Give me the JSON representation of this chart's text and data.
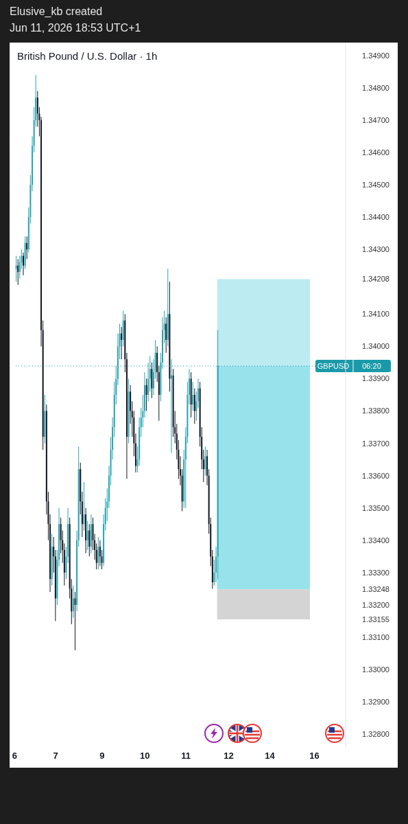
{
  "chart_data": {
    "type": "candlestick",
    "title": "British Pound / U.S. Dollar · 1h",
    "subtitle": "Jun 11, 2026 18:53 UTC+1",
    "annotations": [
      "Elusive_kb created",
      "06:20"
    ],
    "categories": [
      "6",
      null,
      null,
      null,
      null,
      null,
      null,
      null,
      null,
      null,
      null,
      null,
      null,
      null,
      null,
      null,
      null,
      null,
      null,
      null,
      null,
      null,
      null,
      "7",
      null,
      null,
      null,
      null,
      null,
      null,
      null,
      null,
      null,
      null,
      null,
      null,
      null,
      null,
      null,
      null,
      null,
      null,
      null,
      null,
      null,
      null,
      null,
      null,
      null,
      "9",
      null,
      null,
      null,
      null,
      null,
      null,
      null,
      null,
      null,
      null,
      null,
      null,
      null,
      null,
      null,
      null,
      null,
      null,
      null,
      null,
      null,
      null,
      null,
      "10",
      null,
      null,
      null,
      null,
      null,
      null,
      null,
      null,
      null,
      null,
      null,
      null,
      null,
      null,
      null,
      null,
      null,
      null,
      null,
      null,
      null,
      null,
      "11",
      null,
      null,
      null,
      null,
      null,
      null,
      null,
      null,
      null,
      null,
      null,
      null,
      null,
      null,
      null,
      null,
      null,
      null,
      null,
      null,
      null,
      null,
      null,
      "12",
      null,
      null,
      null,
      null,
      null,
      null,
      null,
      null,
      null,
      null,
      null,
      null,
      null,
      null,
      null,
      null,
      null,
      null,
      null,
      null,
      null,
      null,
      "14",
      null,
      null,
      null,
      null,
      null,
      null,
      null,
      null,
      null,
      null,
      null,
      null,
      null,
      null,
      null,
      null,
      null,
      null,
      null,
      null,
      null,
      null,
      null,
      null,
      "16",
      null,
      null,
      null,
      null,
      null,
      null,
      null,
      null,
      null,
      null,
      null,
      null,
      null,
      null,
      null,
      null,
      null
    ],
    "ohlc": [
      null,
      [
        1.3424,
        1.3428,
        1.342,
        1.3425
      ],
      [
        1.3425,
        1.3427,
        1.3419,
        1.3423
      ],
      [
        1.3423,
        1.3428,
        1.3421,
        1.3426
      ],
      [
        1.3426,
        1.343,
        1.3424,
        1.3428
      ],
      [
        1.3428,
        1.3429,
        1.3422,
        1.3425
      ],
      [
        1.3425,
        1.3434,
        1.3424,
        1.3432
      ],
      [
        1.3432,
        1.3434,
        1.3427,
        1.343
      ],
      [
        1.343,
        1.3443,
        1.3429,
        1.344
      ],
      [
        1.344,
        1.3453,
        1.3438,
        1.345
      ],
      [
        1.345,
        1.3465,
        1.3448,
        1.3462
      ],
      [
        1.3462,
        1.3474,
        1.346,
        1.347
      ],
      [
        1.347,
        1.3484,
        1.3468,
        1.3477
      ],
      [
        1.3477,
        1.3479,
        1.3468,
        1.3472
      ],
      [
        1.3472,
        1.3474,
        1.3465,
        1.347
      ],
      [
        1.347,
        1.3471,
        1.34,
        1.3405
      ],
      [
        1.3405,
        1.3408,
        1.3368,
        1.3372
      ],
      [
        1.3372,
        1.3385,
        1.337,
        1.338
      ],
      [
        1.338,
        1.3382,
        1.3348,
        1.3352
      ],
      [
        1.3352,
        1.3355,
        1.334,
        1.3345
      ],
      [
        1.3345,
        1.3348,
        1.3324,
        1.3328
      ],
      [
        1.3328,
        1.3342,
        1.3326,
        1.3338
      ],
      [
        1.3338,
        1.3341,
        1.333,
        1.3335
      ],
      [
        1.3335,
        1.3337,
        1.3315,
        1.3322
      ],
      [
        1.3322,
        1.3337,
        1.332,
        1.3334
      ],
      [
        1.3334,
        1.335,
        1.3332,
        1.3345
      ],
      [
        1.3345,
        1.3347,
        1.3336,
        1.334
      ],
      [
        1.334,
        1.3343,
        1.3333,
        1.3337
      ],
      [
        1.3337,
        1.3339,
        1.3326,
        1.333
      ],
      [
        1.333,
        1.3338,
        1.3328,
        1.3335
      ],
      [
        1.3335,
        1.335,
        1.3333,
        1.3345
      ],
      [
        1.3345,
        1.3347,
        1.3322,
        1.3325
      ],
      [
        1.3325,
        1.3328,
        1.3314,
        1.3318
      ],
      [
        1.3318,
        1.3326,
        1.3316,
        1.3322
      ],
      [
        1.3322,
        1.3324,
        1.3306,
        1.332
      ],
      [
        1.332,
        1.3343,
        1.3318,
        1.334
      ],
      [
        1.334,
        1.3369,
        1.3338,
        1.3362
      ],
      [
        1.3362,
        1.3364,
        1.3348,
        1.3352
      ],
      [
        1.3352,
        1.3355,
        1.3341,
        1.3345
      ],
      [
        1.3345,
        1.3358,
        1.3343,
        1.3348
      ],
      [
        1.3348,
        1.335,
        1.3336,
        1.334
      ],
      [
        1.334,
        1.3346,
        1.3337,
        1.3343
      ],
      [
        1.3343,
        1.3345,
        1.3335,
        1.3338
      ],
      [
        1.3338,
        1.3348,
        1.3336,
        1.3345
      ],
      [
        1.3345,
        1.3347,
        1.3337,
        1.334
      ],
      [
        1.334,
        1.3342,
        1.3334,
        1.3337
      ],
      [
        1.3337,
        1.3339,
        1.3331,
        1.3333
      ],
      [
        1.3333,
        1.3341,
        1.3331,
        1.3338
      ],
      [
        1.3338,
        1.334,
        1.3332,
        1.3335
      ],
      [
        1.3335,
        1.3337,
        1.3331,
        1.3333
      ],
      [
        1.3333,
        1.3348,
        1.3332,
        1.3345
      ],
      [
        1.3345,
        1.3353,
        1.3343,
        1.335
      ],
      [
        1.335,
        1.3356,
        1.3346,
        1.3352
      ],
      [
        1.3352,
        1.3363,
        1.335,
        1.336
      ],
      [
        1.336,
        1.3372,
        1.3357,
        1.3368
      ],
      [
        1.3368,
        1.3378,
        1.3365,
        1.3375
      ],
      [
        1.3375,
        1.3389,
        1.3372,
        1.3385
      ],
      [
        1.3385,
        1.3394,
        1.3382,
        1.339
      ],
      [
        1.339,
        1.3404,
        1.3388,
        1.34
      ],
      [
        1.34,
        1.3407,
        1.3396,
        1.3404
      ],
      [
        1.3404,
        1.3406,
        1.3396,
        1.3402
      ],
      [
        1.3402,
        1.3411,
        1.34,
        1.3408
      ],
      [
        1.3408,
        1.341,
        1.3392,
        1.3396
      ],
      [
        1.3396,
        1.3398,
        1.3359,
        1.3372
      ],
      [
        1.3372,
        1.339,
        1.337,
        1.3386
      ],
      [
        1.3386,
        1.3388,
        1.3376,
        1.338
      ],
      [
        1.338,
        1.3383,
        1.3372,
        1.3378
      ],
      [
        1.3378,
        1.338,
        1.3366,
        1.337
      ],
      [
        1.337,
        1.3373,
        1.3361,
        1.3363
      ],
      [
        1.3363,
        1.3369,
        1.3361,
        1.3365
      ],
      [
        1.3365,
        1.3378,
        1.3363,
        1.3375
      ],
      [
        1.3375,
        1.3381,
        1.3372,
        1.3378
      ],
      [
        1.3378,
        1.3385,
        1.3375,
        1.338
      ],
      [
        1.338,
        1.3392,
        1.3378,
        1.3388
      ],
      [
        1.3388,
        1.339,
        1.338,
        1.3385
      ],
      [
        1.3385,
        1.3395,
        1.3383,
        1.339
      ],
      [
        1.339,
        1.3397,
        1.3386,
        1.3393
      ],
      [
        1.3393,
        1.3395,
        1.3384,
        1.3387
      ],
      [
        1.3387,
        1.3396,
        1.3385,
        1.3392
      ],
      [
        1.3392,
        1.3402,
        1.339,
        1.3398
      ],
      [
        1.3398,
        1.34,
        1.3389,
        1.3392
      ],
      [
        1.3392,
        1.3394,
        1.3377,
        1.3385
      ],
      [
        1.3385,
        1.3398,
        1.3383,
        1.3395
      ],
      [
        1.3395,
        1.3409,
        1.3393,
        1.3405
      ],
      [
        1.3405,
        1.3411,
        1.3401,
        1.3407
      ],
      [
        1.3407,
        1.3409,
        1.3398,
        1.3402
      ],
      [
        1.3402,
        1.3424,
        1.34,
        1.341
      ],
      [
        1.341,
        1.342,
        1.3386,
        1.339
      ],
      [
        1.339,
        1.3396,
        1.3367,
        1.3391
      ],
      [
        1.3391,
        1.3393,
        1.3372,
        1.3375
      ],
      [
        1.3375,
        1.338,
        1.337,
        1.3373
      ],
      [
        1.3373,
        1.3376,
        1.3365,
        1.3368
      ],
      [
        1.3368,
        1.3371,
        1.3359,
        1.3362
      ],
      [
        1.3362,
        1.3366,
        1.3357,
        1.336
      ],
      [
        1.336,
        1.3362,
        1.3349,
        1.3352
      ],
      [
        1.3352,
        1.3368,
        1.335,
        1.3365
      ],
      [
        1.3365,
        1.3375,
        1.335,
        1.3372
      ],
      [
        1.3372,
        1.3389,
        1.337,
        1.3385
      ],
      [
        1.3385,
        1.3393,
        1.3382,
        1.339
      ],
      [
        1.339,
        1.3392,
        1.3378,
        1.3382
      ],
      [
        1.3382,
        1.3389,
        1.338,
        1.3385
      ],
      [
        1.3385,
        1.3387,
        1.3376,
        1.338
      ],
      [
        1.338,
        1.3386,
        1.3377,
        1.3383
      ],
      [
        1.3383,
        1.339,
        1.3381,
        1.3387
      ],
      [
        1.3387,
        1.3389,
        1.3369,
        1.3372
      ],
      [
        1.3372,
        1.3375,
        1.3362,
        1.3365
      ],
      [
        1.3365,
        1.3368,
        1.3358,
        1.3362
      ],
      [
        1.3362,
        1.3369,
        1.336,
        1.3366
      ],
      [
        1.3366,
        1.3368,
        1.3357,
        1.336
      ],
      [
        1.336,
        1.3362,
        1.3342,
        1.3345
      ],
      [
        1.3345,
        1.3347,
        1.3332,
        1.3335
      ],
      [
        1.3335,
        1.3337,
        1.3325,
        1.3327
      ],
      [
        1.3327,
        1.3334,
        1.3326,
        1.333
      ],
      [
        1.333,
        1.3338,
        1.3327,
        1.3335
      ],
      [
        1.3335,
        1.3405,
        1.3328,
        1.3394
      ],
      null,
      null,
      null,
      null,
      null,
      null,
      null,
      null,
      null,
      null,
      null,
      null,
      null,
      null,
      null,
      null,
      null,
      null,
      null,
      null,
      null,
      null,
      null,
      null,
      null,
      null,
      null,
      null,
      null,
      null,
      null,
      null,
      null,
      null,
      null,
      null,
      null,
      null,
      null,
      null,
      null,
      null,
      null,
      null,
      null,
      null,
      null,
      null,
      null,
      null,
      null,
      null,
      null,
      null,
      null,
      null,
      null,
      null,
      null,
      null,
      null,
      null,
      null,
      null,
      null,
      null,
      null,
      null,
      null,
      null,
      null
    ],
    "colors": [
      null,
      "#26a4b3",
      "#131722",
      "#26a4b3",
      "#26a4b3",
      "#131722",
      "#26a4b3",
      "#131722",
      "#26a4b3",
      "#26a4b3",
      "#26a4b3",
      "#26a4b3",
      "#26a4b3",
      "#131722",
      "#131722",
      "#131722",
      "#131722",
      "#26a4b3",
      "#131722",
      "#131722",
      "#131722",
      "#26a4b3",
      "#131722",
      "#131722",
      "#26a4b3",
      "#26a4b3",
      "#131722",
      "#131722",
      "#131722",
      "#26a4b3",
      "#26a4b3",
      "#131722",
      "#131722",
      "#26a4b3",
      "#131722",
      "#26a4b3",
      "#26a4b3",
      "#131722",
      "#131722",
      "#26a4b3",
      "#131722",
      "#26a4b3",
      "#131722",
      "#26a4b3",
      "#131722",
      "#131722",
      "#131722",
      "#26a4b3",
      "#131722",
      "#131722",
      "#26a4b3",
      "#26a4b3",
      "#26a4b3",
      "#26a4b3",
      "#26a4b3",
      "#26a4b3",
      "#26a4b3",
      "#26a4b3",
      "#26a4b3",
      "#26a4b3",
      "#131722",
      "#26a4b3",
      "#131722",
      "#131722",
      "#26a4b3",
      "#131722",
      "#131722",
      "#131722",
      "#131722",
      "#26a4b3",
      "#26a4b3",
      "#26a4b3",
      "#26a4b3",
      "#26a4b3",
      "#131722",
      "#26a4b3",
      "#26a4b3",
      "#131722",
      "#26a4b3",
      "#26a4b3",
      "#131722",
      "#131722",
      "#26a4b3",
      "#26a4b3",
      "#26a4b3",
      "#131722",
      "#26a4b3",
      "#131722",
      "#26a4b3",
      "#131722",
      "#131722",
      "#131722",
      "#131722",
      "#131722",
      "#131722",
      "#26a4b3",
      "#26a4b3",
      "#26a4b3",
      "#26a4b3",
      "#131722",
      "#26a4b3",
      "#131722",
      "#26a4b3",
      "#26a4b3",
      "#131722",
      "#131722",
      "#131722",
      "#26a4b3",
      "#131722",
      "#131722",
      "#131722",
      "#131722",
      "#26a4b3",
      "#26a4b3",
      "#26a4b3",
      null,
      null,
      null,
      null,
      null,
      null,
      null,
      null,
      null,
      null,
      null,
      null,
      null,
      null,
      null,
      null,
      null,
      null,
      null,
      null,
      null,
      null,
      null,
      null,
      null,
      null,
      null,
      null,
      null,
      null,
      null,
      null,
      null,
      null,
      null,
      null,
      null,
      null,
      null,
      null,
      null,
      null,
      null,
      null,
      null,
      null,
      null,
      null,
      null,
      null,
      null,
      null,
      null,
      null,
      null,
      null,
      null,
      null,
      null,
      null,
      null,
      null,
      null,
      null,
      null,
      null,
      null,
      null,
      null,
      null,
      null
    ],
    "ylim": [
      1.3276,
      1.3494
    ],
    "yticks": [
      {
        "value": 1.328,
        "label": "1.32800"
      },
      {
        "value": 1.329,
        "label": "1.32900"
      },
      {
        "value": 1.33,
        "label": "1.33000"
      },
      {
        "value": 1.331,
        "label": "1.33100"
      },
      {
        "value": 1.33155,
        "label": "1.33155"
      },
      {
        "value": 1.332,
        "label": "1.33200"
      },
      {
        "value": 1.33248,
        "label": "1.33248"
      },
      {
        "value": 1.333,
        "label": "1.33300"
      },
      {
        "value": 1.334,
        "label": "1.33400"
      },
      {
        "value": 1.335,
        "label": "1.33500"
      },
      {
        "value": 1.336,
        "label": "1.33600"
      },
      {
        "value": 1.337,
        "label": "1.33700"
      },
      {
        "value": 1.338,
        "label": "1.33800"
      },
      {
        "value": 1.339,
        "label": "1.33900"
      },
      {
        "value": 1.34,
        "label": "1.34000"
      },
      {
        "value": 1.341,
        "label": "1.34100"
      },
      {
        "value": 1.34208,
        "label": "1.34208"
      },
      {
        "value": 1.343,
        "label": "1.34300"
      },
      {
        "value": 1.344,
        "label": "1.34400"
      },
      {
        "value": 1.345,
        "label": "1.34500"
      },
      {
        "value": 1.346,
        "label": "1.34600"
      },
      {
        "value": 1.347,
        "label": "1.34700"
      },
      {
        "value": 1.348,
        "label": "1.34800"
      },
      {
        "value": 1.349,
        "label": "1.34900"
      }
    ],
    "ref_lines": [
      {
        "axis": "y",
        "value": 1.33939,
        "label": "GBPUSD",
        "color": "#1a9aa8",
        "line_style": "dotted"
      }
    ],
    "bands": [
      {
        "axis": "y",
        "from": 1.33939,
        "to": 1.34208,
        "color": "#bcebf2"
      },
      {
        "axis": "y",
        "from": 1.33248,
        "to": 1.33939,
        "color": "#98e2ec"
      },
      {
        "axis": "y",
        "from": 1.33155,
        "to": 1.33248,
        "color": "#d4d4d4"
      }
    ]
  }
}
